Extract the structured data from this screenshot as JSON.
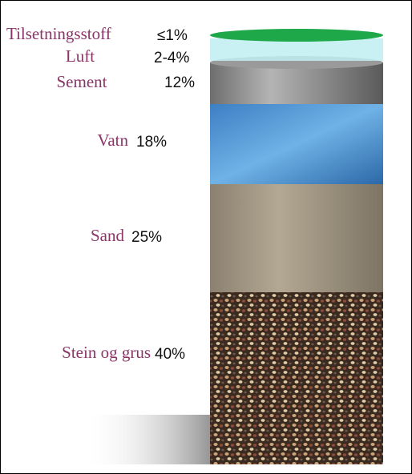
{
  "layers": [
    {
      "label": "Tilsetningsstoff",
      "amount": "≤1%"
    },
    {
      "label": "Luft",
      "amount": "2-4%"
    },
    {
      "label": "Sement",
      "amount": "12%"
    },
    {
      "label": "Vatn",
      "amount": "18%"
    },
    {
      "label": "Sand",
      "amount": "25%"
    },
    {
      "label": "Stein og grus",
      "amount": "40%"
    }
  ]
}
